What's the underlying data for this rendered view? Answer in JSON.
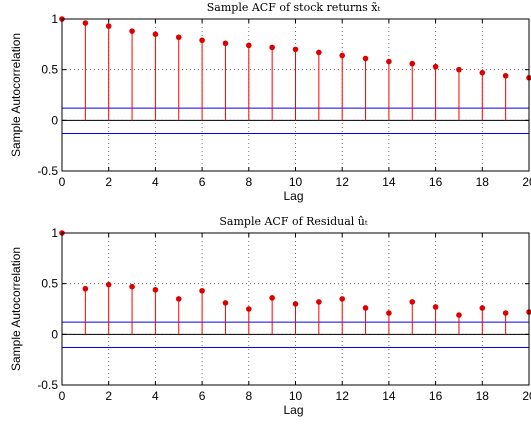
{
  "chart_data": [
    {
      "type": "stem",
      "title": "Sample ACF of stock returns x̃ₜ",
      "xlabel": "Lag",
      "ylabel": "Sample Autocorrelation",
      "xlim": [
        0,
        20
      ],
      "ylim": [
        -0.5,
        1
      ],
      "xticks": [
        "0",
        "2",
        "4",
        "6",
        "8",
        "10",
        "12",
        "14",
        "16",
        "18",
        "20"
      ],
      "yticks": [
        "-0.5",
        "0",
        "0.5",
        "1"
      ],
      "grid": "dotted",
      "x": [
        0,
        1,
        2,
        3,
        4,
        5,
        6,
        7,
        8,
        9,
        10,
        11,
        12,
        13,
        14,
        15,
        16,
        17,
        18,
        19,
        20
      ],
      "values": [
        1.0,
        0.96,
        0.93,
        0.88,
        0.85,
        0.82,
        0.79,
        0.76,
        0.74,
        0.72,
        0.7,
        0.67,
        0.64,
        0.61,
        0.58,
        0.56,
        0.53,
        0.5,
        0.47,
        0.44,
        0.42
      ],
      "confidence_bounds": [
        0.12,
        -0.13
      ],
      "stem_color": "#ff0000",
      "marker_color": "#dd0000",
      "bound_color": "#0000ff"
    },
    {
      "type": "stem",
      "title": "Sample ACF of Residual ûₜ",
      "xlabel": "Lag",
      "ylabel": "Sample Autocorrelation",
      "xlim": [
        0,
        20
      ],
      "ylim": [
        -0.5,
        1
      ],
      "xticks": [
        "0",
        "2",
        "4",
        "6",
        "8",
        "10",
        "12",
        "14",
        "16",
        "18",
        "20"
      ],
      "yticks": [
        "-0.5",
        "0",
        "0.5",
        "1"
      ],
      "grid": "dotted",
      "x": [
        0,
        1,
        2,
        3,
        4,
        5,
        6,
        7,
        8,
        9,
        10,
        11,
        12,
        13,
        14,
        15,
        16,
        17,
        18,
        19,
        20
      ],
      "values": [
        1.0,
        0.45,
        0.49,
        0.47,
        0.44,
        0.35,
        0.43,
        0.31,
        0.25,
        0.36,
        0.3,
        0.32,
        0.35,
        0.26,
        0.21,
        0.32,
        0.27,
        0.19,
        0.26,
        0.21,
        0.22
      ],
      "confidence_bounds": [
        0.12,
        -0.13
      ],
      "stem_color": "#ff0000",
      "marker_color": "#dd0000",
      "bound_color": "#0000ff"
    }
  ]
}
